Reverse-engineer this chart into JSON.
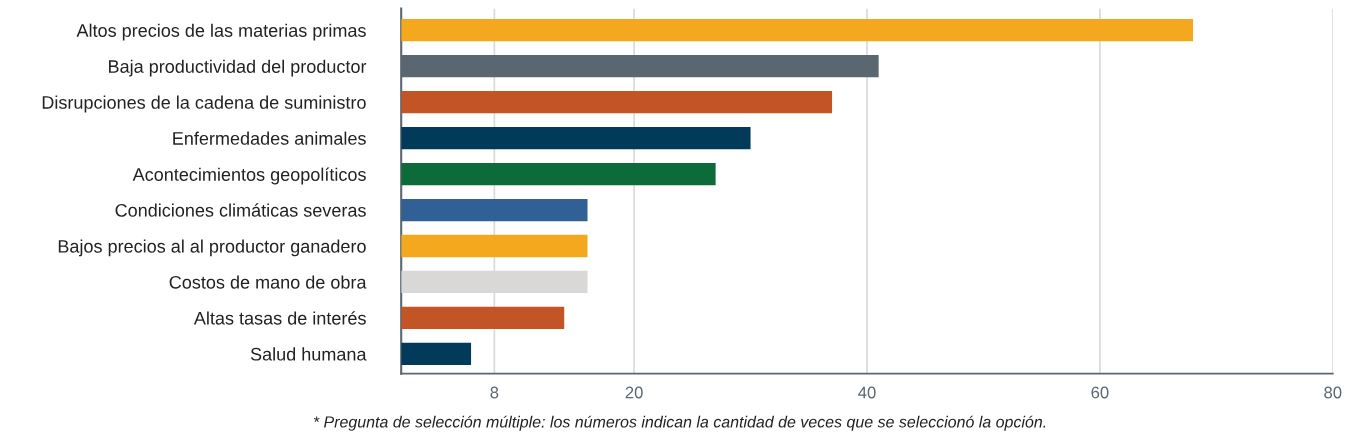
{
  "chart_data": {
    "type": "bar",
    "orientation": "horizontal",
    "categories": [
      "Altos precios de las materias primas",
      "Baja productividad del productor",
      "Disrupciones de la cadena de suministro",
      "Enfermedades animales",
      "Acontecimientos geopolíticos",
      "Condiciones climáticas severas",
      "Bajos precios al al productor ganadero",
      "Costos de mano de obra",
      "Altas tasas de interés",
      "Salud humana"
    ],
    "values": [
      68,
      41,
      37,
      30,
      27,
      16,
      16,
      16,
      14,
      6
    ],
    "colors": [
      "#f4a81d",
      "#5b6770",
      "#c35425",
      "#023a5a",
      "#0d6b3a",
      "#316096",
      "#f4a81d",
      "#d9d8d6",
      "#c35425",
      "#023a5a"
    ],
    "xlim": [
      0,
      80
    ],
    "xticks": [
      8,
      20,
      40,
      60,
      80
    ],
    "grid": "x",
    "annotations": [
      "* Pregunta de selección múltiple: los números indican la cantidad de veces que se seleccionó la opción."
    ]
  }
}
